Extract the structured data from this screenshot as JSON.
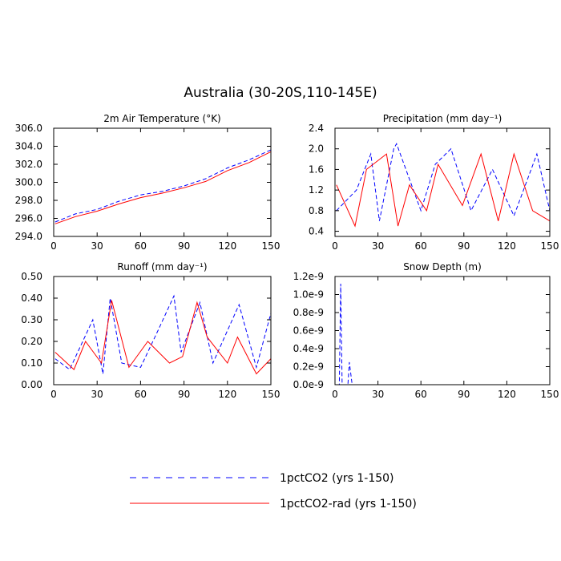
{
  "figure": {
    "title": "Australia (30-20S,110-145E)"
  },
  "legend": [
    {
      "label": "1pctCO2 (yrs 1-150)",
      "color": "#0000ff",
      "dash": true
    },
    {
      "label": "1pctCO2-rad (yrs 1-150)",
      "color": "#ff0000",
      "dash": false
    }
  ],
  "chart_data": [
    {
      "type": "line",
      "title": "2m Air Temperature (°K)",
      "xlim": [
        0,
        150
      ],
      "ylim": [
        294.0,
        306.0
      ],
      "xticks": [
        0,
        30,
        60,
        90,
        120,
        150
      ],
      "yticks": [
        294.0,
        296.0,
        298.0,
        300.0,
        302.0,
        304.0,
        306.0
      ],
      "yticklabels": [
        "294.0",
        "296.0",
        "298.0",
        "300.0",
        "302.0",
        "304.0",
        "306.0"
      ],
      "series": [
        {
          "name": "1pctCO2 (yrs 1-150)",
          "x": [
            1,
            15,
            30,
            45,
            60,
            75,
            90,
            105,
            120,
            135,
            150
          ],
          "values": [
            295.6,
            296.5,
            297.0,
            297.9,
            298.6,
            299.0,
            299.6,
            300.4,
            301.6,
            302.5,
            303.6
          ]
        },
        {
          "name": "1pctCO2-rad (yrs 1-150)",
          "x": [
            1,
            15,
            30,
            45,
            60,
            75,
            90,
            105,
            120,
            135,
            150
          ],
          "values": [
            295.4,
            296.2,
            296.8,
            297.6,
            298.3,
            298.8,
            299.4,
            300.1,
            301.3,
            302.2,
            303.4
          ]
        }
      ]
    },
    {
      "type": "line",
      "title": "Precipitation (mm day⁻¹)",
      "xlim": [
        0,
        150
      ],
      "ylim": [
        0.3,
        2.4
      ],
      "xticks": [
        0,
        30,
        60,
        90,
        120,
        150
      ],
      "yticks": [
        0.4,
        0.8,
        1.2,
        1.6,
        2.0,
        2.4
      ],
      "yticklabels": [
        "0.4",
        "0.8",
        "1.2",
        "1.6",
        "2.0",
        "2.4"
      ],
      "series": [
        {
          "name": "1pctCO2 (yrs 1-150)",
          "x": [
            1,
            15,
            25,
            31,
            41,
            43,
            60,
            70,
            81,
            95,
            110,
            125,
            141,
            150
          ],
          "values": [
            0.8,
            1.2,
            1.9,
            0.6,
            2.0,
            2.1,
            0.8,
            1.7,
            2.0,
            0.8,
            1.6,
            0.7,
            1.9,
            0.8
          ]
        },
        {
          "name": "1pctCO2-rad (yrs 1-150)",
          "x": [
            1,
            14,
            22,
            36,
            44,
            52,
            64,
            72,
            89,
            102,
            114,
            125,
            138,
            150
          ],
          "values": [
            1.3,
            0.5,
            1.6,
            1.9,
            0.5,
            1.3,
            0.8,
            1.7,
            0.9,
            1.9,
            0.6,
            1.9,
            0.8,
            0.6
          ]
        }
      ]
    },
    {
      "type": "line",
      "title": "Runoff (mm day⁻¹)",
      "xlim": [
        0,
        150
      ],
      "ylim": [
        0.0,
        0.5
      ],
      "xticks": [
        0,
        30,
        60,
        90,
        120,
        150
      ],
      "yticks": [
        0.0,
        0.1,
        0.2,
        0.3,
        0.4,
        0.5
      ],
      "yticklabels": [
        "0.00",
        "0.10",
        "0.20",
        "0.30",
        "0.40",
        "0.50"
      ],
      "series": [
        {
          "name": "1pctCO2 (yrs 1-150)",
          "x": [
            1,
            11,
            27,
            34,
            39,
            47,
            60,
            72,
            83,
            88,
            101,
            110,
            128,
            140,
            150
          ],
          "values": [
            0.12,
            0.07,
            0.3,
            0.05,
            0.4,
            0.1,
            0.08,
            0.25,
            0.41,
            0.15,
            0.38,
            0.1,
            0.37,
            0.08,
            0.33
          ]
        },
        {
          "name": "1pctCO2-rad (yrs 1-150)",
          "x": [
            1,
            14,
            22,
            33,
            40,
            52,
            65,
            80,
            89,
            99,
            106,
            120,
            127,
            140,
            150
          ],
          "values": [
            0.15,
            0.07,
            0.2,
            0.1,
            0.39,
            0.08,
            0.2,
            0.1,
            0.13,
            0.38,
            0.22,
            0.1,
            0.22,
            0.05,
            0.12
          ]
        }
      ]
    },
    {
      "type": "line",
      "title": "Snow Depth (m)",
      "xlim": [
        0,
        150
      ],
      "ylim": [
        0.0,
        1.2e-09
      ],
      "xticks": [
        0,
        30,
        60,
        90,
        120,
        150
      ],
      "yticks": [
        0,
        2e-10,
        4e-10,
        6e-10,
        8e-10,
        1e-09,
        1.2e-09
      ],
      "yticklabels": [
        "0.0e-9",
        "0.2e-9",
        "0.4e-9",
        "0.6e-9",
        "0.8e-9",
        "1.0e-9",
        "1.2e-9"
      ],
      "series": [
        {
          "name": "1pctCO2 (yrs 1-150)",
          "x": [
            1,
            3,
            4,
            5,
            9,
            10,
            12,
            14,
            150
          ],
          "values": [
            0,
            0,
            1.12e-09,
            0,
            0,
            2.5e-10,
            0,
            0,
            0
          ]
        },
        {
          "name": "1pctCO2-rad (yrs 1-150)",
          "x": [
            1,
            150
          ],
          "values": [
            0,
            0
          ]
        }
      ]
    }
  ]
}
